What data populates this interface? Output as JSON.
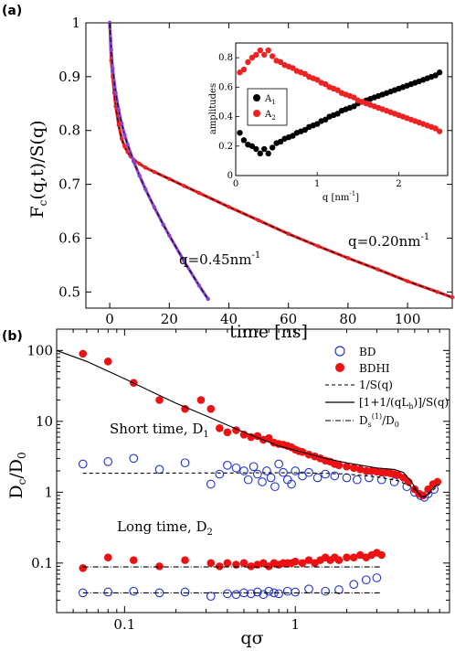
{
  "chart_data": [
    {
      "panel": "(a)",
      "type": "scatter",
      "title": "",
      "xlabel": "time [ns]",
      "ylabel": "F_c(q,t)/S(q)",
      "xlim": [
        -8,
        115
      ],
      "ylim": [
        0.47,
        1.0
      ],
      "xticks": [
        0,
        20,
        40,
        60,
        80,
        100
      ],
      "yticks": [
        0.5,
        0.6,
        0.7,
        0.8,
        0.9,
        1
      ],
      "grid": false,
      "series": [
        {
          "label": "q=0.20nm-1",
          "color": "#ee2222",
          "x": [
            0,
            0.5,
            1,
            1.5,
            2,
            3,
            4,
            5,
            6,
            7,
            8,
            10,
            12,
            15,
            20,
            25,
            30,
            40,
            50,
            60,
            70,
            80,
            90,
            100,
            110,
            115
          ],
          "y": [
            1.0,
            0.93,
            0.9,
            0.87,
            0.845,
            0.81,
            0.785,
            0.77,
            0.76,
            0.752,
            0.746,
            0.738,
            0.731,
            0.723,
            0.71,
            0.697,
            0.684,
            0.658,
            0.633,
            0.608,
            0.585,
            0.563,
            0.542,
            0.52,
            0.5,
            0.49
          ]
        },
        {
          "label": "q=0.45nm-1",
          "color": "#8844cc",
          "x": [
            0,
            0.5,
            1,
            2,
            3,
            4,
            5,
            6,
            8,
            10,
            12,
            15,
            18,
            20,
            25,
            30,
            33
          ],
          "y": [
            1.0,
            0.95,
            0.915,
            0.87,
            0.838,
            0.813,
            0.792,
            0.774,
            0.743,
            0.716,
            0.691,
            0.657,
            0.625,
            0.605,
            0.557,
            0.512,
            0.487
          ]
        }
      ],
      "annotations": [
        "q=0.45nm",
        "-1",
        "q=0.20nm",
        "-1"
      ],
      "inset": {
        "type": "scatter",
        "xlabel": "q [nm",
        "xlabel_sup": "-1",
        "xlabel_end": "]",
        "ylabel": "amplitudes",
        "xlim": [
          0,
          2.6
        ],
        "ylim": [
          0,
          0.9
        ],
        "xticks": [
          0,
          1,
          2
        ],
        "yticks": [
          0,
          0.2,
          0.4,
          0.6,
          0.8
        ],
        "legend_position": "left",
        "series": [
          {
            "name": "A",
            "sub": "1",
            "color": "#000000",
            "x": [
              0.05,
              0.1,
              0.15,
              0.2,
              0.25,
              0.3,
              0.35,
              0.4,
              0.45,
              0.5,
              0.55,
              0.6,
              0.65,
              0.7,
              0.75,
              0.8,
              0.85,
              0.9,
              0.95,
              1.0,
              1.05,
              1.1,
              1.15,
              1.2,
              1.25,
              1.3,
              1.35,
              1.4,
              1.45,
              1.5,
              1.55,
              1.6,
              1.65,
              1.7,
              1.75,
              1.8,
              1.85,
              1.9,
              1.95,
              2.0,
              2.05,
              2.1,
              2.15,
              2.2,
              2.25,
              2.3,
              2.35,
              2.4,
              2.45,
              2.5
            ],
            "y": [
              0.29,
              0.24,
              0.21,
              0.2,
              0.18,
              0.15,
              0.18,
              0.15,
              0.19,
              0.22,
              0.23,
              0.25,
              0.26,
              0.27,
              0.29,
              0.3,
              0.31,
              0.33,
              0.34,
              0.35,
              0.37,
              0.38,
              0.4,
              0.41,
              0.42,
              0.44,
              0.45,
              0.46,
              0.47,
              0.49,
              0.5,
              0.51,
              0.52,
              0.53,
              0.54,
              0.55,
              0.56,
              0.57,
              0.58,
              0.59,
              0.6,
              0.61,
              0.62,
              0.63,
              0.64,
              0.65,
              0.66,
              0.67,
              0.68,
              0.7
            ]
          },
          {
            "name": "A",
            "sub": "2",
            "color": "#ee2222",
            "x": [
              0.05,
              0.1,
              0.15,
              0.2,
              0.25,
              0.3,
              0.35,
              0.4,
              0.45,
              0.5,
              0.55,
              0.6,
              0.65,
              0.7,
              0.75,
              0.8,
              0.85,
              0.9,
              0.95,
              1.0,
              1.05,
              1.1,
              1.15,
              1.2,
              1.25,
              1.3,
              1.35,
              1.4,
              1.45,
              1.5,
              1.55,
              1.6,
              1.65,
              1.7,
              1.75,
              1.8,
              1.85,
              1.9,
              1.95,
              2.0,
              2.05,
              2.1,
              2.15,
              2.2,
              2.25,
              2.3,
              2.35,
              2.4,
              2.45,
              2.5
            ],
            "y": [
              0.7,
              0.72,
              0.77,
              0.8,
              0.82,
              0.85,
              0.82,
              0.85,
              0.81,
              0.78,
              0.77,
              0.75,
              0.74,
              0.73,
              0.71,
              0.7,
              0.69,
              0.67,
              0.66,
              0.65,
              0.63,
              0.62,
              0.6,
              0.59,
              0.58,
              0.56,
              0.55,
              0.54,
              0.53,
              0.51,
              0.5,
              0.49,
              0.48,
              0.47,
              0.46,
              0.45,
              0.44,
              0.43,
              0.42,
              0.41,
              0.4,
              0.39,
              0.38,
              0.37,
              0.36,
              0.35,
              0.34,
              0.33,
              0.32,
              0.3
            ]
          }
        ]
      }
    },
    {
      "panel": "(b)",
      "type": "scatter",
      "title": "",
      "xlabel": "qσ",
      "ylabel": "D_c/D_0",
      "xscale": "log",
      "yscale": "log",
      "xlim": [
        0.04,
        8.0
      ],
      "ylim": [
        0.02,
        200
      ],
      "xticks": [
        0.1,
        1
      ],
      "yticks": [
        0.1,
        1,
        10,
        100
      ],
      "grid": false,
      "legend_position": "top-right",
      "annotations": [
        "Short time, D",
        "1",
        "Long time, D",
        "2"
      ],
      "series": [
        {
          "name": "BD",
          "marker": "open-circle",
          "color": "#2233cc",
          "x": [
            0.057,
            0.08,
            0.113,
            0.16,
            0.226,
            0.32,
            0.36,
            0.4,
            0.45,
            0.5,
            0.53,
            0.57,
            0.6,
            0.64,
            0.68,
            0.72,
            0.76,
            0.8,
            0.85,
            0.9,
            0.95,
            1.0,
            1.1,
            1.2,
            1.35,
            1.5,
            1.7,
            2.0,
            2.3,
            2.7,
            3.2,
            3.8,
            4.5,
            5.0,
            5.4,
            5.7,
            6.0,
            6.5
          ],
          "y": [
            2.5,
            2.7,
            3.0,
            2.1,
            2.6,
            1.3,
            1.8,
            2.4,
            2.2,
            2.0,
            1.5,
            2.3,
            1.8,
            1.4,
            2.0,
            1.6,
            1.2,
            2.5,
            1.9,
            1.5,
            1.3,
            2.0,
            1.7,
            1.9,
            1.6,
            1.8,
            1.7,
            1.6,
            1.5,
            1.6,
            1.5,
            1.4,
            1.2,
            1.0,
            0.9,
            0.85,
            0.95,
            1.1
          ]
        },
        {
          "name": "BD",
          "marker": "open-circle",
          "color": "#2233cc",
          "x": [
            0.057,
            0.08,
            0.113,
            0.16,
            0.226,
            0.32,
            0.4,
            0.45,
            0.5,
            0.55,
            0.6,
            0.65,
            0.7,
            0.75,
            0.8,
            0.9,
            1.0,
            1.2,
            1.5,
            1.8,
            2.2,
            2.6,
            3.0
          ],
          "y": [
            0.038,
            0.039,
            0.04,
            0.038,
            0.039,
            0.034,
            0.037,
            0.036,
            0.038,
            0.037,
            0.039,
            0.036,
            0.04,
            0.038,
            0.037,
            0.04,
            0.039,
            0.043,
            0.04,
            0.042,
            0.05,
            0.058,
            0.062
          ]
        },
        {
          "name": "BDHI",
          "marker": "filled-circle",
          "color": "#ee1111",
          "x": [
            0.057,
            0.08,
            0.113,
            0.16,
            0.226,
            0.28,
            0.32,
            0.36,
            0.4,
            0.45,
            0.5,
            0.55,
            0.6,
            0.65,
            0.7,
            0.75,
            0.8,
            0.85,
            0.9,
            0.95,
            1.0,
            1.05,
            1.1,
            1.2,
            1.3,
            1.4,
            1.5,
            1.6,
            1.7,
            1.8,
            2.0,
            2.2,
            2.4,
            2.6,
            2.8,
            3.0,
            3.2,
            3.4,
            3.6,
            3.8,
            4.0,
            4.3,
            4.6,
            5.0,
            5.3,
            5.6,
            6.0,
            6.4,
            6.8
          ],
          "y": [
            90,
            70,
            35,
            20,
            15,
            20,
            15,
            8,
            7,
            7.5,
            6.5,
            6.0,
            6.2,
            5.5,
            5.8,
            5.0,
            4.8,
            4.7,
            4.5,
            4.3,
            4.0,
            3.8,
            3.7,
            3.4,
            3.2,
            3.0,
            2.8,
            2.7,
            2.5,
            2.4,
            2.3,
            2.2,
            2.1,
            2.0,
            2.0,
            1.95,
            1.9,
            1.9,
            1.85,
            1.8,
            1.75,
            1.6,
            1.4,
            1.1,
            0.95,
            0.9,
            1.1,
            1.3,
            1.4
          ]
        },
        {
          "name": "BDHI",
          "marker": "filled-circle",
          "color": "#ee1111",
          "x": [
            0.057,
            0.08,
            0.113,
            0.16,
            0.226,
            0.32,
            0.36,
            0.4,
            0.45,
            0.5,
            0.55,
            0.6,
            0.65,
            0.7,
            0.75,
            0.8,
            0.85,
            0.9,
            0.95,
            1.0,
            1.1,
            1.2,
            1.3,
            1.4,
            1.5,
            1.6,
            1.7,
            1.8,
            2.0,
            2.2,
            2.4,
            2.6,
            2.8,
            3.0,
            3.2
          ],
          "y": [
            0.085,
            0.12,
            0.11,
            0.09,
            0.11,
            0.1,
            0.09,
            0.1,
            0.095,
            0.1,
            0.09,
            0.095,
            0.1,
            0.09,
            0.1,
            0.095,
            0.1,
            0.1,
            0.1,
            0.105,
            0.1,
            0.11,
            0.1,
            0.11,
            0.12,
            0.11,
            0.12,
            0.11,
            0.12,
            0.12,
            0.13,
            0.12,
            0.13,
            0.14,
            0.13
          ]
        },
        {
          "name": "1/S(q)",
          "line_style": "dashed",
          "color": "#000000",
          "x": [
            0.057,
            0.1,
            0.2,
            0.4,
            0.6,
            1.0,
            1.5,
            2.0,
            3.0,
            4.0,
            4.8,
            5.3,
            5.7,
            6.0,
            6.5,
            7.0
          ],
          "y": [
            1.85,
            1.85,
            1.86,
            1.87,
            1.88,
            1.88,
            1.85,
            1.8,
            1.65,
            1.45,
            1.2,
            0.95,
            0.85,
            0.92,
            1.1,
            1.3
          ]
        },
        {
          "name": "[1+1/(qL_h)]/S(q)",
          "line_style": "solid",
          "color": "#000000",
          "x": [
            0.04,
            0.06,
            0.1,
            0.15,
            0.2,
            0.3,
            0.5,
            0.8,
            1.0,
            1.5,
            2.0,
            3.0,
            3.8,
            4.3,
            4.8,
            5.2,
            5.5,
            5.8,
            6.2,
            6.8
          ],
          "y": [
            100,
            70,
            40,
            25,
            18,
            12,
            7,
            4.5,
            3.9,
            3.0,
            2.6,
            2.2,
            2.1,
            1.9,
            1.4,
            1.0,
            0.85,
            0.88,
            1.05,
            1.3
          ]
        },
        {
          "name": "D_s^(1)/D_0",
          "line_style": "dash-dot",
          "color": "#000000",
          "x": [
            0.057,
            3.2
          ],
          "y": [
            0.088,
            0.088
          ]
        },
        {
          "name": "D_s^(1)/D_0",
          "line_style": "dash-dot",
          "color": "#000000",
          "x": [
            0.057,
            3.2
          ],
          "y": [
            0.038,
            0.038
          ]
        }
      ],
      "legend": [
        "BD",
        "BDHI",
        "1/S(q)",
        "[1+1/(qL",
        "h",
        ")]/S(q)",
        "D",
        "s",
        "(1)",
        "/D",
        "0"
      ]
    }
  ]
}
